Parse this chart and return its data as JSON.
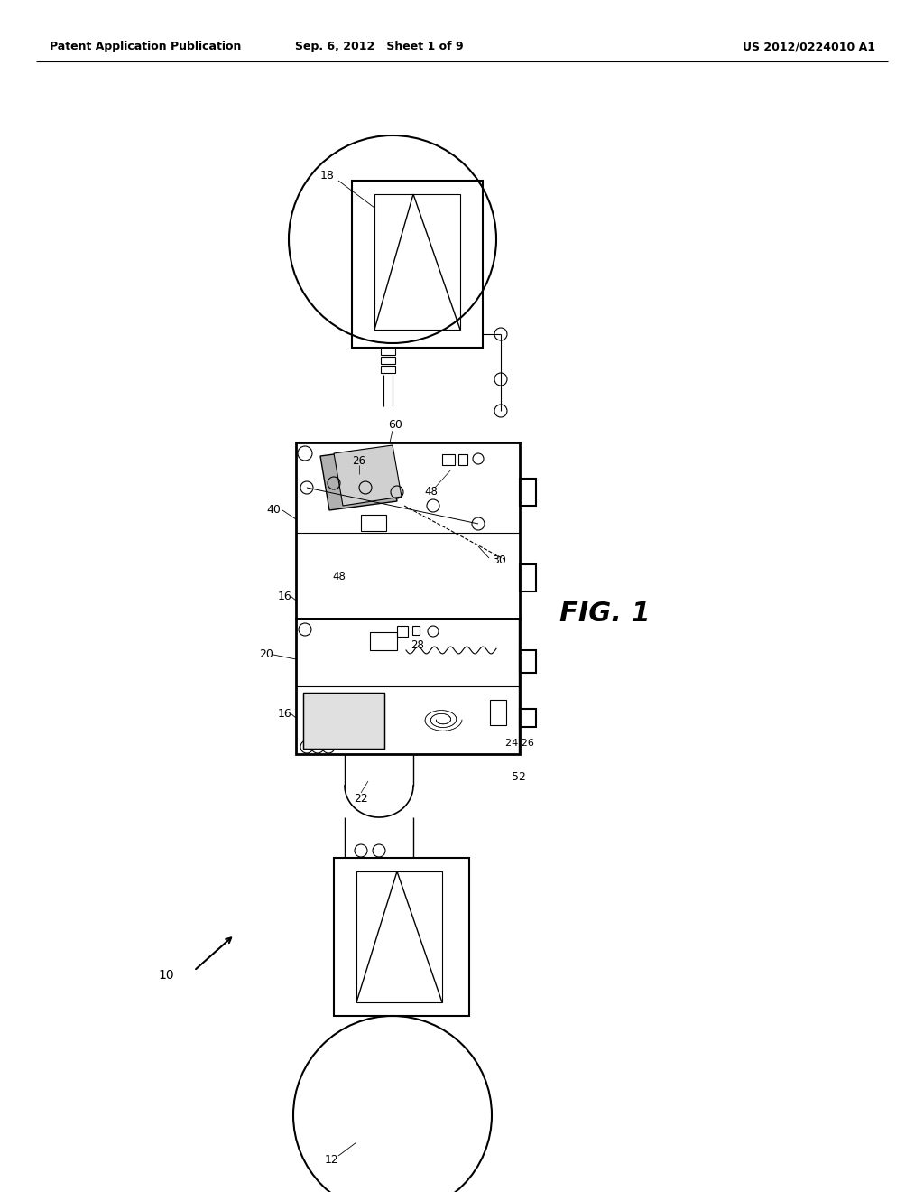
{
  "bg": "#ffffff",
  "lc": "#000000",
  "header_left": "Patent Application Publication",
  "header_mid": "Sep. 6, 2012   Sheet 1 of 9",
  "header_right": "US 2012/0224010 A1"
}
